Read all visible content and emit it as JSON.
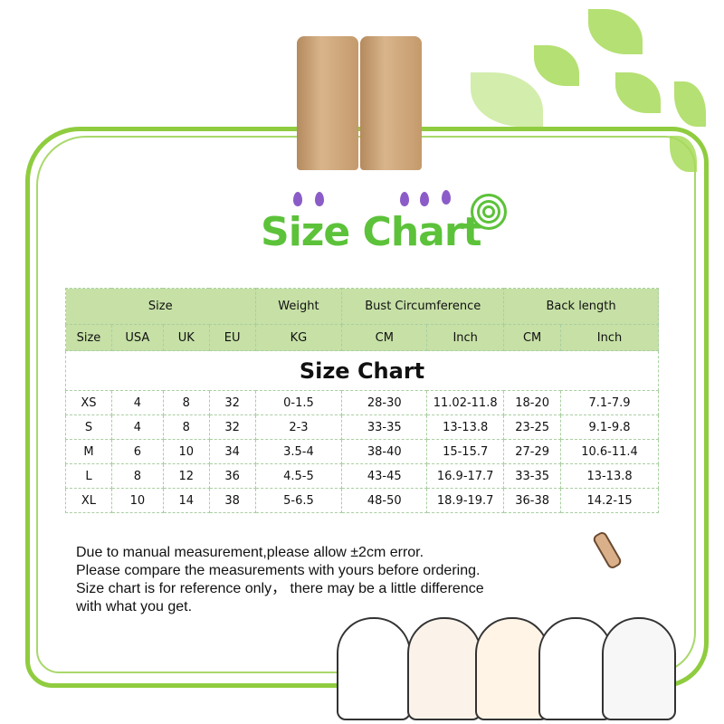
{
  "heading": "Size Chart",
  "table": {
    "title": "Size Chart",
    "group_headers": [
      "Size",
      "Weight",
      "Bust Circumference",
      "Back length"
    ],
    "sub_headers": [
      "Size",
      "USA",
      "UK",
      "EU",
      "KG",
      "CM",
      "Inch",
      "CM",
      "Inch"
    ],
    "rows": [
      [
        "XS",
        "4",
        "8",
        "32",
        "0-1.5",
        "28-30",
        "11.02-11.8",
        "18-20",
        "7.1-7.9"
      ],
      [
        "S",
        "4",
        "8",
        "32",
        "2-3",
        "33-35",
        "13-13.8",
        "23-25",
        "9.1-9.8"
      ],
      [
        "M",
        "6",
        "10",
        "34",
        "3.5-4",
        "38-40",
        "15-15.7",
        "27-29",
        "10.6-11.4"
      ],
      [
        "L",
        "8",
        "12",
        "36",
        "4.5-5",
        "43-45",
        "16.9-17.7",
        "33-35",
        "13-13.8"
      ],
      [
        "XL",
        "10",
        "14",
        "38",
        "5-6.5",
        "48-50",
        "18.9-19.7",
        "36-38",
        "14.2-15"
      ]
    ]
  },
  "notes": [
    "Due to manual measurement,please allow ±2cm error.",
    "Please compare the measurements with yours before ordering.",
    "Size chart is for reference only， there may be a little difference",
    "with what you get."
  ],
  "colors": {
    "frame": "#8fcc3f",
    "title": "#5cc23a",
    "header_bg": "#c6e0a6",
    "hearts": "#8b5cc8"
  }
}
